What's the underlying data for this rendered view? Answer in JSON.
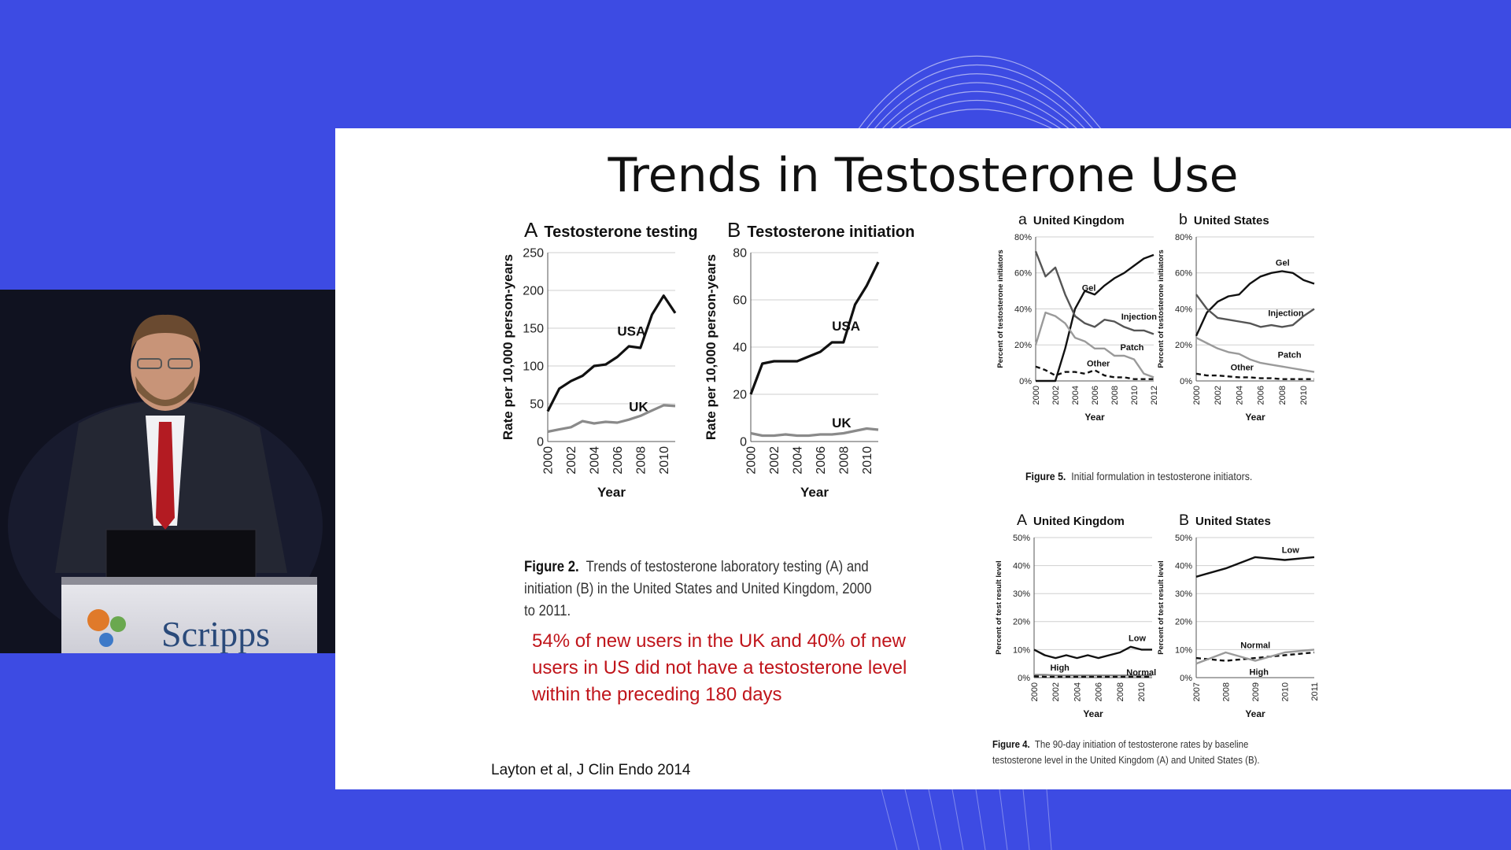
{
  "slide": {
    "title": "Trends in Testosterone Use",
    "note": "54% of new users in the UK and 40% of new users in US did not have a testosterone level within the preceding 180 days",
    "citation": "Layton et al, J Clin Endo 2014",
    "fig2_caption_label": "Figure 2.",
    "fig2_caption_text": "Trends of testosterone laboratory testing (A) and initiation (B) in the United States and United Kingdom, 2000 to 2011.",
    "fig5_caption_label": "Figure 5.",
    "fig5_caption_text": "Initial formulation in testosterone initiators.",
    "fig4_caption_label": "Figure 4.",
    "fig4_caption_line1": "The 90-day initiation of testosterone rates by baseline",
    "fig4_caption_line2": "testosterone level in the United Kingdom (A) and United States (B)."
  },
  "podium": {
    "logo_text": "Scripps"
  },
  "colors": {
    "background": "#3d4be3",
    "slide": "#ffffff",
    "note": "#c0151b",
    "black_line": "#111111",
    "grey_line": "#8a8a8a",
    "mid_line": "#555555"
  },
  "chart_data": [
    {
      "id": "fig2a",
      "type": "line",
      "letter": "A",
      "title": "Testosterone testing",
      "xlabel": "Year",
      "ylabel": "Rate per 10,000 person-years",
      "ylim": [
        0,
        250
      ],
      "yticks": [
        0,
        50,
        100,
        150,
        200,
        250
      ],
      "xlim": [
        2000,
        2011
      ],
      "xticks": [
        2000,
        2002,
        2004,
        2006,
        2008,
        2010
      ],
      "grid": true,
      "series": [
        {
          "name": "USA",
          "label_at": [
            2006,
            140
          ],
          "color": "#111111",
          "x": [
            2000,
            2001,
            2002,
            2003,
            2004,
            2005,
            2006,
            2007,
            2008,
            2009,
            2010,
            2011
          ],
          "y": [
            40,
            70,
            80,
            87,
            100,
            102,
            112,
            126,
            124,
            168,
            193,
            170
          ]
        },
        {
          "name": "UK",
          "label_at": [
            2007,
            40
          ],
          "color": "#8a8a8a",
          "x": [
            2000,
            2001,
            2002,
            2003,
            2004,
            2005,
            2006,
            2007,
            2008,
            2009,
            2010,
            2011
          ],
          "y": [
            13,
            16,
            19,
            27,
            24,
            26,
            25,
            29,
            34,
            41,
            48,
            47
          ]
        }
      ]
    },
    {
      "id": "fig2b",
      "type": "line",
      "letter": "B",
      "title": "Testosterone initiation",
      "xlabel": "Year",
      "ylabel": "Rate per 10,000 person-years",
      "ylim": [
        0,
        80
      ],
      "yticks": [
        0,
        20,
        40,
        60,
        80
      ],
      "xlim": [
        2000,
        2011
      ],
      "xticks": [
        2000,
        2002,
        2004,
        2006,
        2008,
        2010
      ],
      "grid": true,
      "series": [
        {
          "name": "USA",
          "label_at": [
            2007,
            47
          ],
          "color": "#111111",
          "x": [
            2000,
            2001,
            2002,
            2003,
            2004,
            2005,
            2006,
            2007,
            2008,
            2009,
            2010,
            2011
          ],
          "y": [
            20,
            33,
            34,
            34,
            34,
            36,
            38,
            42,
            42,
            58,
            66,
            76
          ]
        },
        {
          "name": "UK",
          "label_at": [
            2007,
            6
          ],
          "color": "#8a8a8a",
          "x": [
            2000,
            2001,
            2002,
            2003,
            2004,
            2005,
            2006,
            2007,
            2008,
            2009,
            2010,
            2011
          ],
          "y": [
            3.5,
            2.5,
            2.5,
            3,
            2.5,
            2.5,
            3,
            3,
            3.5,
            4.5,
            5.5,
            5
          ]
        }
      ]
    },
    {
      "id": "fig5a",
      "type": "line",
      "letter": "a",
      "title": "United Kingdom",
      "xlabel": "Year",
      "ylabel": "Percent of testosterone initiators",
      "ylim": [
        0,
        80
      ],
      "yticks": [
        0,
        20,
        40,
        60,
        80
      ],
      "ytick_suffix": "%",
      "xlim": [
        2000,
        2012
      ],
      "xticks": [
        2000,
        2002,
        2004,
        2006,
        2008,
        2010,
        2012
      ],
      "grid": true,
      "series": [
        {
          "name": "Gel",
          "label_at": [
            2004.7,
            50
          ],
          "color": "#111111",
          "x": [
            2000,
            2001,
            2002,
            2003,
            2004,
            2005,
            2006,
            2007,
            2008,
            2009,
            2010,
            2011,
            2012
          ],
          "y": [
            0,
            0,
            0,
            18,
            40,
            50,
            48,
            53,
            57,
            60,
            64,
            68,
            70
          ]
        },
        {
          "name": "Injection",
          "label_at": [
            2008.7,
            34
          ],
          "color": "#555555",
          "x": [
            2000,
            2001,
            2002,
            2003,
            2004,
            2005,
            2006,
            2007,
            2008,
            2009,
            2010,
            2011,
            2012
          ],
          "y": [
            72,
            58,
            63,
            48,
            36,
            32,
            30,
            34,
            33,
            30,
            28,
            28,
            26
          ]
        },
        {
          "name": "Patch",
          "label_at": [
            2008.6,
            17
          ],
          "color": "#9a9a9a",
          "x": [
            2000,
            2001,
            2002,
            2003,
            2004,
            2005,
            2006,
            2007,
            2008,
            2009,
            2010,
            2011,
            2012
          ],
          "y": [
            20,
            38,
            36,
            32,
            24,
            22,
            18,
            18,
            14,
            14,
            12,
            4,
            2
          ]
        },
        {
          "name": "Other",
          "label_at": [
            2005.2,
            8
          ],
          "color": "#111111",
          "dashed": true,
          "x": [
            2000,
            2001,
            2002,
            2003,
            2004,
            2005,
            2006,
            2007,
            2008,
            2009,
            2010,
            2011,
            2012
          ],
          "y": [
            8,
            6,
            3,
            5,
            5,
            4,
            6,
            3,
            2,
            2,
            1,
            1,
            1
          ]
        }
      ]
    },
    {
      "id": "fig5b",
      "type": "line",
      "letter": "b",
      "title": "United States",
      "xlabel": "Year",
      "ylabel": "Percent of testosterone initiators",
      "ylim": [
        0,
        80
      ],
      "yticks": [
        0,
        20,
        40,
        60,
        80
      ],
      "ytick_suffix": "%",
      "xlim": [
        2000,
        2011
      ],
      "xticks": [
        2000,
        2002,
        2004,
        2006,
        2008,
        2010
      ],
      "grid": true,
      "series": [
        {
          "name": "Gel",
          "label_at": [
            2007.4,
            64
          ],
          "color": "#111111",
          "x": [
            2000,
            2001,
            2002,
            2003,
            2004,
            2005,
            2006,
            2007,
            2008,
            2009,
            2010,
            2011
          ],
          "y": [
            25,
            38,
            44,
            47,
            48,
            54,
            58,
            60,
            61,
            60,
            56,
            54
          ]
        },
        {
          "name": "Injection",
          "label_at": [
            2006.7,
            36
          ],
          "color": "#555555",
          "x": [
            2000,
            2001,
            2002,
            2003,
            2004,
            2005,
            2006,
            2007,
            2008,
            2009,
            2010,
            2011
          ],
          "y": [
            48,
            40,
            35,
            34,
            33,
            32,
            30,
            31,
            30,
            31,
            36,
            40
          ]
        },
        {
          "name": "Patch",
          "label_at": [
            2007.6,
            13
          ],
          "color": "#9a9a9a",
          "x": [
            2000,
            2001,
            2002,
            2003,
            2004,
            2005,
            2006,
            2007,
            2008,
            2009,
            2010,
            2011
          ],
          "y": [
            24,
            21,
            18,
            16,
            15,
            12,
            10,
            9,
            8,
            7,
            6,
            5
          ]
        },
        {
          "name": "Other",
          "label_at": [
            2003.2,
            6
          ],
          "color": "#111111",
          "dashed": true,
          "x": [
            2000,
            2001,
            2002,
            2003,
            2004,
            2005,
            2006,
            2007,
            2008,
            2009,
            2010,
            2011
          ],
          "y": [
            4,
            3,
            3,
            2.5,
            2,
            2,
            1.5,
            1.5,
            1,
            1,
            1,
            1
          ]
        }
      ]
    },
    {
      "id": "fig4a",
      "type": "line",
      "letter": "A",
      "title": "United Kingdom",
      "xlabel": "Year",
      "ylabel": "Percent of test result level",
      "ylim": [
        0,
        50
      ],
      "yticks": [
        0,
        10,
        20,
        30,
        40,
        50
      ],
      "ytick_suffix": "%",
      "xlim": [
        2000,
        2011
      ],
      "xticks": [
        2000,
        2002,
        2004,
        2006,
        2008,
        2010
      ],
      "grid": true,
      "series": [
        {
          "name": "Low",
          "label_at": [
            2008.8,
            13
          ],
          "color": "#111111",
          "x": [
            2000,
            2001,
            2002,
            2003,
            2004,
            2005,
            2006,
            2007,
            2008,
            2009,
            2010,
            2011
          ],
          "y": [
            10,
            8,
            7,
            8,
            7,
            8,
            7,
            8,
            9,
            11,
            10,
            10
          ]
        },
        {
          "name": "High",
          "label_at": [
            2001.5,
            2.5
          ],
          "color": "#8a8a8a",
          "x": [
            2000,
            2001,
            2002,
            2003,
            2004,
            2005,
            2006,
            2007,
            2008,
            2009,
            2010,
            2011
          ],
          "y": [
            1,
            1,
            0.8,
            0.8,
            0.8,
            0.8,
            0.8,
            0.8,
            0.8,
            0.8,
            0.8,
            0.8
          ]
        },
        {
          "name": "Normal",
          "label_at": [
            2008.6,
            0.8
          ],
          "color": "#111111",
          "dashed": true,
          "x": [
            2000,
            2001,
            2002,
            2003,
            2004,
            2005,
            2006,
            2007,
            2008,
            2009,
            2010,
            2011
          ],
          "y": [
            0.5,
            0.3,
            0.3,
            0.3,
            0.3,
            0.3,
            0.3,
            0.3,
            0.3,
            0.3,
            0.3,
            0.3
          ]
        }
      ]
    },
    {
      "id": "fig4b",
      "type": "line",
      "letter": "B",
      "title": "United States",
      "xlabel": "Year",
      "ylabel": "Percent of test result level",
      "ylim": [
        0,
        50
      ],
      "yticks": [
        0,
        10,
        20,
        30,
        40,
        50
      ],
      "ytick_suffix": "%",
      "xlim": [
        2007,
        2011
      ],
      "xticks": [
        2007,
        2008,
        2009,
        2010,
        2011
      ],
      "grid": true,
      "series": [
        {
          "name": "Low",
          "label_at": [
            2009.9,
            44.5
          ],
          "color": "#111111",
          "x": [
            2007,
            2008,
            2009,
            2010,
            2011
          ],
          "y": [
            36,
            39,
            43,
            42,
            43
          ]
        },
        {
          "name": "Normal",
          "label_at": [
            2008.5,
            10.5
          ],
          "color": "#111111",
          "dashed": true,
          "x": [
            2007,
            2008,
            2009,
            2010,
            2011
          ],
          "y": [
            7,
            6,
            7,
            8,
            9
          ]
        },
        {
          "name": "High",
          "label_at": [
            2008.8,
            1
          ],
          "color": "#9a9a9a",
          "x": [
            2007,
            2008,
            2009,
            2010,
            2011
          ],
          "y": [
            5,
            9,
            6,
            9,
            10
          ]
        }
      ]
    }
  ]
}
